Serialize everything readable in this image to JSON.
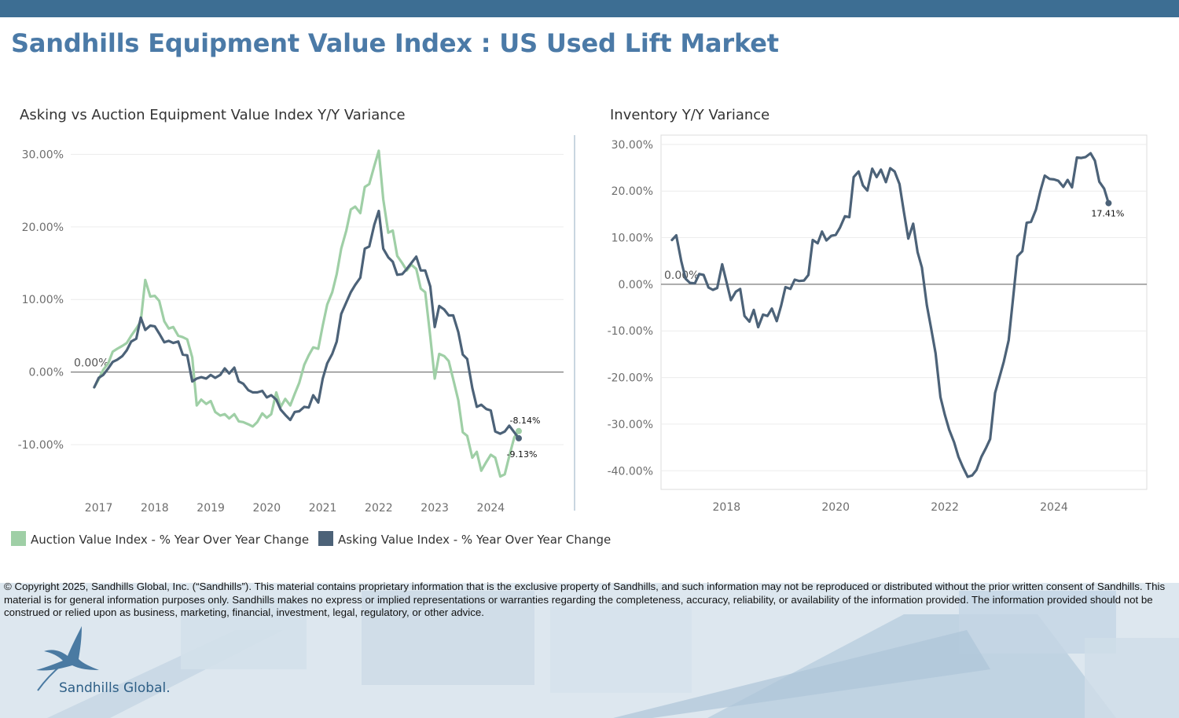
{
  "colors": {
    "top_bar": "#3d6e93",
    "title": "#4b7aa7",
    "auction": "#9fcfa6",
    "asking": "#4c6278",
    "inventory": "#4c6278",
    "zero_line": "#7a7a7a",
    "grid": "#ececec"
  },
  "header": {
    "title": "Sandhills Equipment Value Index : US Used Lift Market"
  },
  "left_chart": {
    "title": "Asking vs Auction Equipment Value Index Y/Y Variance"
  },
  "right_chart": {
    "title": "Inventory Y/Y Variance"
  },
  "legend": {
    "items": [
      {
        "label": "Auction Value Index - % Year Over Year Change",
        "color": "#9fcfa6"
      },
      {
        "label": "Asking Value Index - % Year Over Year Change",
        "color": "#4c6278"
      }
    ]
  },
  "footer": {
    "copyright": "© Copyright 2025, Sandhills Global, Inc. (“Sandhills”). This material contains proprietary information that is the exclusive property of Sandhills, and such information may not be reproduced or distributed without the prior written consent of Sandhills. This material is for general information purposes only. Sandhills makes no express or implied representations or warranties regarding the completeness, accuracy, reliability, or availability of the information provided. The information provided should not be construed or relied upon as business, marketing, financial, investment, legal, regulatory, or other advice.",
    "brand": "Sandhills Global."
  },
  "chart_data": [
    {
      "type": "line",
      "title": "Asking vs Auction Equipment Value Index Y/Y Variance",
      "xlabel": "",
      "ylabel": "",
      "ylim": [
        -16.5,
        32
      ],
      "xlim": [
        2016.5,
        2025.3
      ],
      "x_ticks": [
        2017,
        2018,
        2019,
        2020,
        2021,
        2022,
        2023,
        2024
      ],
      "x_tick_labels": [
        "2017",
        "2018",
        "2019",
        "2020",
        "2021",
        "2022",
        "2023",
        "2024"
      ],
      "y_ticks": [
        -10,
        0,
        10,
        20,
        30
      ],
      "y_tick_labels": [
        "-10.00%",
        "0.00%",
        "10.00%",
        "20.00%",
        "30.00%"
      ],
      "zero_label": "0.00%",
      "end_labels": {
        "auction": "-8.14%",
        "asking": "-9.13%"
      },
      "series": [
        {
          "name": "Auction Value Index - % Year Over Year Change",
          "key": "auction",
          "x": [
            2016.92,
            2017.0,
            2017.08,
            2017.17,
            2017.25,
            2017.33,
            2017.42,
            2017.5,
            2017.58,
            2017.67,
            2017.75,
            2017.83,
            2017.92,
            2018.0,
            2018.08,
            2018.17,
            2018.25,
            2018.33,
            2018.42,
            2018.5,
            2018.58,
            2018.67,
            2018.75,
            2018.83,
            2018.92,
            2019.0,
            2019.08,
            2019.17,
            2019.25,
            2019.33,
            2019.42,
            2019.5,
            2019.58,
            2019.67,
            2019.75,
            2019.83,
            2019.92,
            2020.0,
            2020.08,
            2020.17,
            2020.25,
            2020.33,
            2020.42,
            2020.5,
            2020.58,
            2020.67,
            2020.75,
            2020.83,
            2020.92,
            2021.0,
            2021.08,
            2021.17,
            2021.25,
            2021.33,
            2021.42,
            2021.5,
            2021.58,
            2021.67,
            2021.75,
            2021.83,
            2021.92,
            2022.0,
            2022.08,
            2022.17,
            2022.25,
            2022.33,
            2022.42,
            2022.5,
            2022.58,
            2022.67,
            2022.75,
            2022.83,
            2022.92,
            2023.0,
            2023.08,
            2023.17,
            2023.25,
            2023.33,
            2023.42,
            2023.5,
            2023.58,
            2023.67,
            2023.75,
            2023.83,
            2023.92,
            2024.0,
            2024.08,
            2024.17,
            2024.25,
            2024.33,
            2024.42,
            2024.5
          ],
          "values": [
            -2.1,
            -1.0,
            0.3,
            1.2,
            2.8,
            3.2,
            3.6,
            4.0,
            5.0,
            6.0,
            7.0,
            12.7,
            10.4,
            10.5,
            9.8,
            7.0,
            6.0,
            6.2,
            5.0,
            4.8,
            4.5,
            2.0,
            -4.6,
            -3.8,
            -4.4,
            -4.0,
            -5.5,
            -6.0,
            -5.8,
            -6.4,
            -5.8,
            -6.8,
            -6.9,
            -7.2,
            -7.5,
            -6.9,
            -5.7,
            -6.3,
            -5.8,
            -2.8,
            -4.8,
            -3.7,
            -4.6,
            -3.0,
            -1.5,
            1.0,
            2.3,
            3.4,
            3.2,
            6.4,
            9.3,
            11.0,
            13.5,
            17.0,
            19.5,
            22.4,
            22.8,
            21.9,
            25.5,
            25.9,
            28.4,
            30.5,
            23.8,
            19.2,
            19.5,
            16.0,
            15.0,
            14.0,
            14.8,
            14.2,
            11.5,
            11.0,
            4.9,
            -0.9,
            2.5,
            2.2,
            1.5,
            -1.0,
            -3.9,
            -8.3,
            -8.8,
            -11.8,
            -11.0,
            -13.6,
            -12.4,
            -11.4,
            -11.8,
            -14.4,
            -14.1,
            -11.6,
            -9.0,
            -8.14
          ]
        },
        {
          "name": "Asking Value Index - % Year Over Year Change",
          "key": "asking",
          "x": [
            2016.92,
            2017.0,
            2017.08,
            2017.17,
            2017.25,
            2017.33,
            2017.42,
            2017.5,
            2017.58,
            2017.67,
            2017.75,
            2017.83,
            2017.92,
            2018.0,
            2018.08,
            2018.17,
            2018.25,
            2018.33,
            2018.42,
            2018.5,
            2018.58,
            2018.67,
            2018.75,
            2018.83,
            2018.92,
            2019.0,
            2019.08,
            2019.17,
            2019.25,
            2019.33,
            2019.42,
            2019.5,
            2019.58,
            2019.67,
            2019.75,
            2019.83,
            2019.92,
            2020.0,
            2020.08,
            2020.17,
            2020.25,
            2020.33,
            2020.42,
            2020.5,
            2020.58,
            2020.67,
            2020.75,
            2020.83,
            2020.92,
            2021.0,
            2021.08,
            2021.17,
            2021.25,
            2021.33,
            2021.42,
            2021.5,
            2021.58,
            2021.67,
            2021.75,
            2021.83,
            2021.92,
            2022.0,
            2022.08,
            2022.17,
            2022.25,
            2022.33,
            2022.42,
            2022.5,
            2022.58,
            2022.67,
            2022.75,
            2022.83,
            2022.92,
            2023.0,
            2023.08,
            2023.17,
            2023.25,
            2023.33,
            2023.42,
            2023.5,
            2023.58,
            2023.67,
            2023.75,
            2023.83,
            2023.92,
            2024.0,
            2024.08,
            2024.17,
            2024.25,
            2024.33,
            2024.42,
            2024.5
          ],
          "values": [
            -2.1,
            -0.8,
            -0.4,
            0.5,
            1.4,
            1.7,
            2.2,
            3.0,
            4.2,
            4.6,
            7.5,
            5.8,
            6.4,
            6.3,
            5.3,
            4.1,
            4.3,
            4.0,
            4.2,
            2.4,
            2.3,
            -1.3,
            -0.9,
            -0.7,
            -0.9,
            -0.4,
            -0.8,
            -0.4,
            0.5,
            -0.2,
            0.6,
            -1.3,
            -1.6,
            -2.5,
            -2.8,
            -2.8,
            -2.6,
            -3.5,
            -3.2,
            -3.8,
            -5.2,
            -5.9,
            -6.6,
            -5.5,
            -5.4,
            -4.8,
            -4.9,
            -3.2,
            -4.2,
            -0.9,
            1.2,
            2.5,
            4.2,
            8.0,
            9.6,
            11.0,
            12.0,
            13.0,
            17.0,
            17.3,
            20.3,
            22.2,
            17.0,
            15.8,
            15.2,
            13.4,
            13.5,
            14.2,
            15.0,
            15.9,
            14.0,
            14.0,
            11.8,
            6.2,
            9.1,
            8.6,
            7.8,
            7.8,
            5.5,
            2.4,
            1.8,
            -2.2,
            -4.8,
            -4.5,
            -5.1,
            -5.3,
            -8.2,
            -8.5,
            -8.2,
            -7.4,
            -8.3,
            -9.13
          ]
        }
      ],
      "legend_position": "bottom-left",
      "grid": true
    },
    {
      "type": "line",
      "title": "Inventory Y/Y Variance",
      "xlabel": "",
      "ylabel": "",
      "ylim": [
        -44,
        32
      ],
      "xlim": [
        2016.8,
        2025.7
      ],
      "x_ticks": [
        2018,
        2020,
        2022,
        2024
      ],
      "x_tick_labels": [
        "2018",
        "2020",
        "2022",
        "2024"
      ],
      "y_ticks": [
        -40,
        -30,
        -20,
        -10,
        0,
        10,
        20,
        30
      ],
      "y_tick_labels": [
        "-40.00%",
        "-30.00%",
        "-20.00%",
        "-10.00%",
        "0.00%",
        "10.00%",
        "20.00%",
        "30.00%"
      ],
      "zero_label": "0.00%",
      "end_labels": {
        "inventory": "17.41%"
      },
      "series": [
        {
          "name": "Inventory",
          "key": "inventory",
          "x": [
            2017.0,
            2017.08,
            2017.17,
            2017.25,
            2017.33,
            2017.42,
            2017.5,
            2017.58,
            2017.67,
            2017.75,
            2017.83,
            2017.92,
            2018.0,
            2018.08,
            2018.17,
            2018.25,
            2018.33,
            2018.42,
            2018.5,
            2018.58,
            2018.67,
            2018.75,
            2018.83,
            2018.92,
            2019.0,
            2019.08,
            2019.17,
            2019.25,
            2019.33,
            2019.42,
            2019.5,
            2019.58,
            2019.67,
            2019.75,
            2019.83,
            2019.92,
            2020.0,
            2020.08,
            2020.17,
            2020.25,
            2020.33,
            2020.42,
            2020.5,
            2020.58,
            2020.67,
            2020.75,
            2020.83,
            2020.92,
            2021.0,
            2021.08,
            2021.17,
            2021.25,
            2021.33,
            2021.42,
            2021.5,
            2021.58,
            2021.67,
            2021.75,
            2021.83,
            2021.92,
            2022.0,
            2022.08,
            2022.17,
            2022.25,
            2022.33,
            2022.42,
            2022.5,
            2022.58,
            2022.67,
            2022.75,
            2022.83,
            2022.92,
            2023.0,
            2023.08,
            2023.17,
            2023.25,
            2023.33,
            2023.42,
            2023.5,
            2023.58,
            2023.67,
            2023.75,
            2023.83,
            2023.92,
            2024.0,
            2024.08,
            2024.17,
            2024.25,
            2024.33,
            2024.42,
            2024.5,
            2024.58,
            2024.67,
            2024.75,
            2024.83,
            2024.92,
            2025.0
          ],
          "values": [
            9.5,
            10.5,
            5.0,
            1.2,
            0.3,
            0.2,
            2.2,
            2.0,
            -0.7,
            -1.2,
            -0.8,
            4.3,
            0.5,
            -3.4,
            -1.6,
            -1.0,
            -6.8,
            -8.0,
            -5.5,
            -9.2,
            -6.5,
            -6.8,
            -5.2,
            -7.9,
            -4.6,
            -0.6,
            -1.0,
            1.0,
            0.7,
            0.8,
            2.0,
            9.5,
            8.8,
            11.3,
            9.4,
            10.4,
            10.6,
            12.2,
            14.6,
            14.4,
            23.0,
            24.2,
            21.2,
            20.1,
            24.8,
            23.0,
            24.6,
            21.9,
            24.9,
            24.2,
            21.5,
            15.5,
            9.8,
            13.0,
            6.9,
            3.6,
            -4.5,
            -9.5,
            -14.8,
            -24.2,
            -28.0,
            -31.2,
            -33.9,
            -37.0,
            -39.2,
            -41.3,
            -41.0,
            -39.8,
            -37.0,
            -35.2,
            -33.2,
            -23.3,
            -20.0,
            -16.6,
            -12.0,
            -3.0,
            6.0,
            7.1,
            13.2,
            13.4,
            16.0,
            20.0,
            23.3,
            22.6,
            22.5,
            22.2,
            20.9,
            22.4,
            20.8,
            27.2,
            27.1,
            27.3,
            28.1,
            26.5,
            22.0,
            20.5,
            17.41
          ]
        }
      ],
      "grid": true
    }
  ]
}
